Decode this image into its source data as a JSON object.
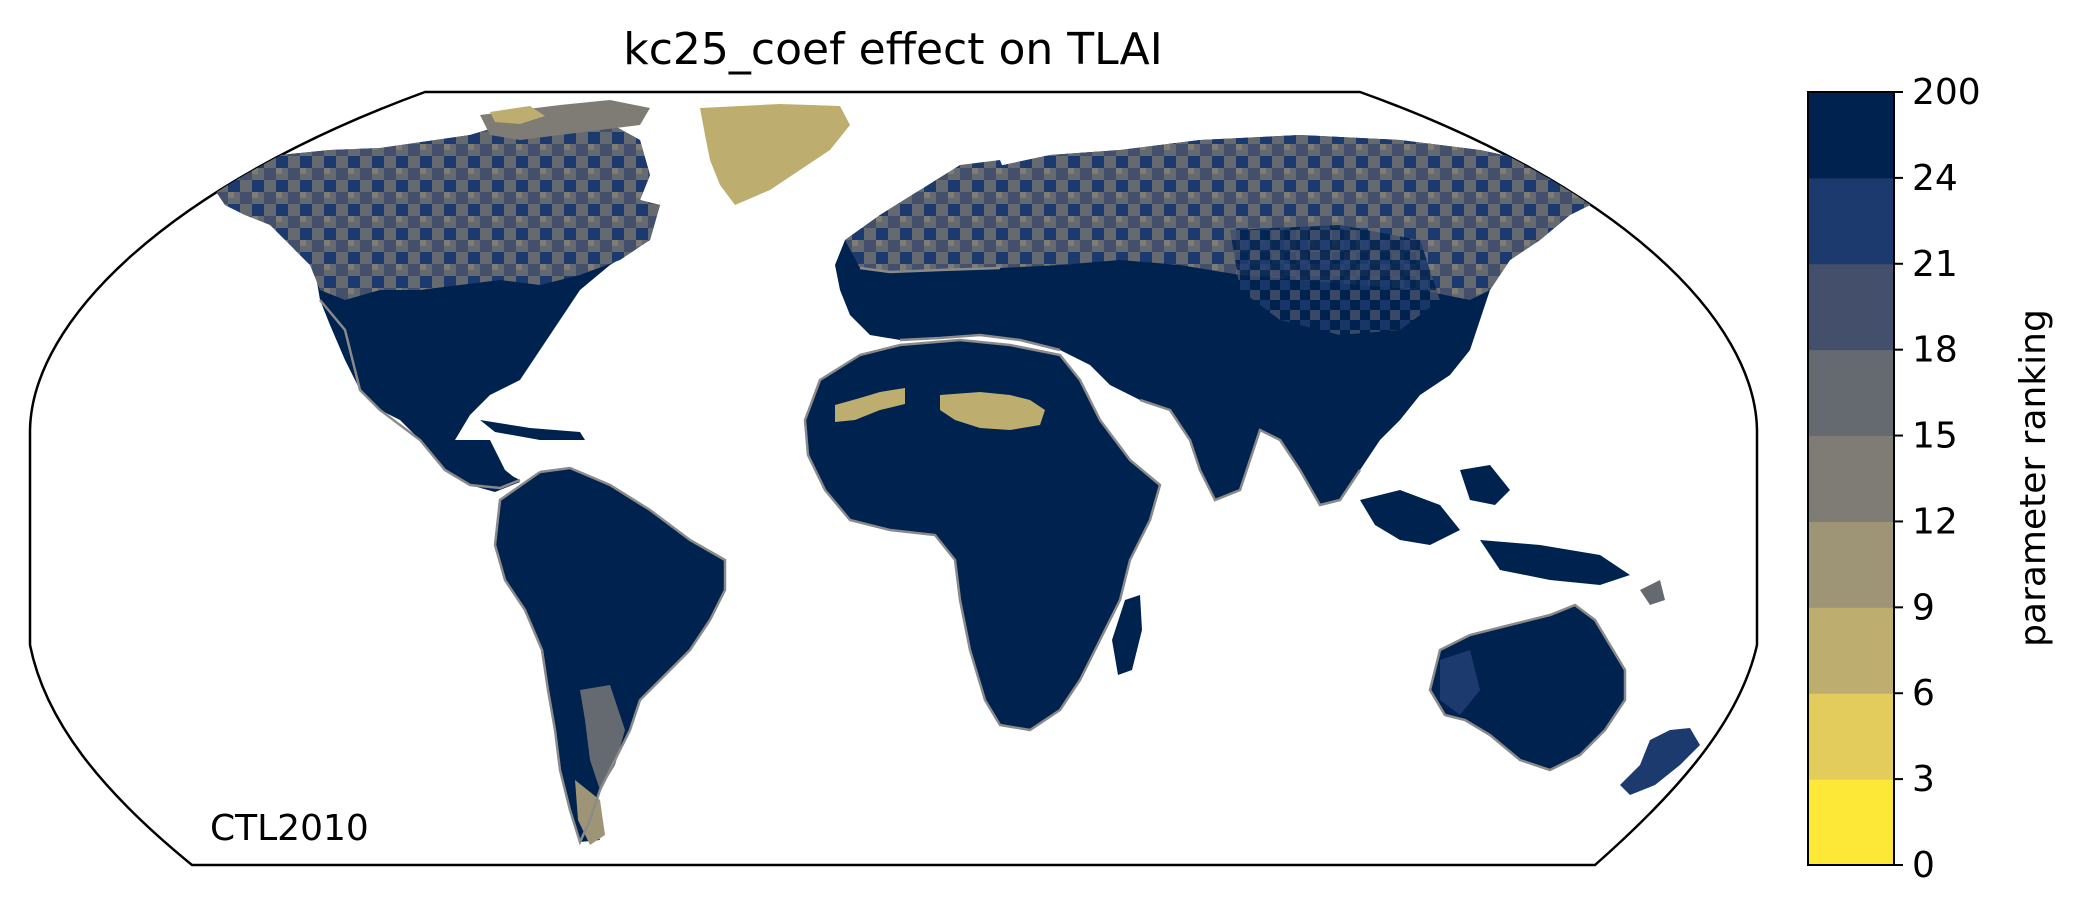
{
  "title": "kc25_coef effect on TLAI",
  "experiment_label": "CTL2010",
  "colorbar": {
    "label": "parameter ranking",
    "ticks": [
      "0",
      "3",
      "6",
      "9",
      "12",
      "15",
      "18",
      "21",
      "24",
      "200"
    ],
    "colors": [
      "#fde737",
      "#e3cb5c",
      "#bdad6e",
      "#9e9576",
      "#7f7c75",
      "#656a71",
      "#434f6b",
      "#1d3a6e",
      "#00224e"
    ]
  },
  "map": {
    "projection": "Robinson",
    "coastline_color": "#8a8a8a",
    "land_default_rank_color": "#00224e",
    "notable_regions": [
      {
        "name": "Greenland",
        "color": "#bdad6e"
      },
      {
        "name": "Sahara patches",
        "color": "#bdad6e"
      },
      {
        "name": "Northern Eurasia / North America",
        "color": "mixed #656a71 / #434f6b / #1d3a6e"
      }
    ]
  }
}
